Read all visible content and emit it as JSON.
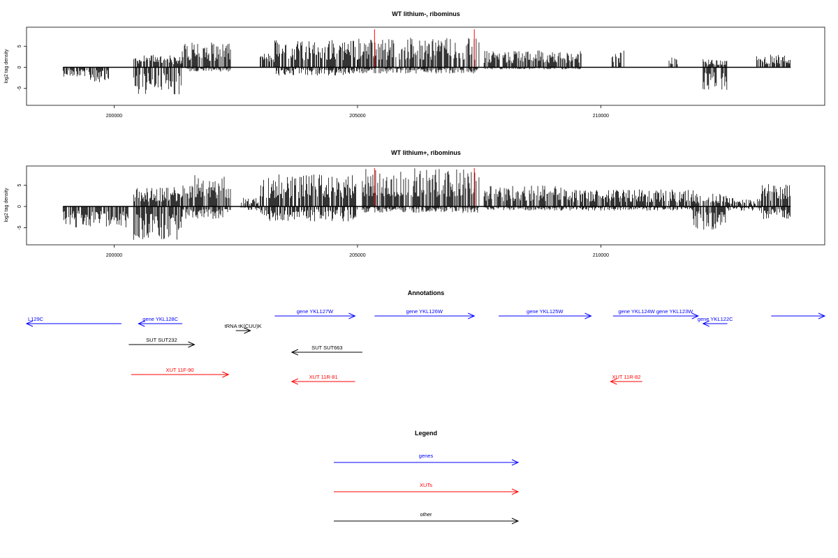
{
  "colors": {
    "signal": "#000000",
    "highlight": "#ff0000",
    "gene": "#0000ff",
    "xut": "#ff0000",
    "other": "#000000"
  },
  "chart_data": [
    {
      "type": "bar",
      "title": "WT lithium-, ribominus",
      "xlabel": "",
      "ylabel": "log2 tag density",
      "xlim": [
        198200,
        214600
      ],
      "ylim": [
        -9,
        9.5
      ],
      "xticks": [
        200000,
        205000,
        210000
      ],
      "xtick_labels": [
        "200000",
        "205000",
        "210000"
      ],
      "yticks": [
        -5,
        0,
        5
      ],
      "ytick_labels": [
        "-5",
        "0",
        "5"
      ],
      "baseline": {
        "x": [
          198950,
          213900
        ],
        "y": 0
      },
      "highlight_marks": [
        {
          "x": 205350,
          "y": 9.0
        },
        {
          "x": 207400,
          "y": 9.0
        }
      ],
      "density_segments": [
        {
          "x": [
            198950,
            199400
          ],
          "max": 0,
          "min": -2.2
        },
        {
          "x": [
            199400,
            199900
          ],
          "max": 0,
          "min": -3.5
        },
        {
          "x": [
            200400,
            201400
          ],
          "max": 3.0,
          "min": -6.5
        },
        {
          "x": [
            201400,
            202400
          ],
          "max": 6.0,
          "min": -1.0
        },
        {
          "x": [
            203000,
            203300
          ],
          "max": 3.5,
          "min": 0
        },
        {
          "x": [
            203300,
            205000
          ],
          "max": 6.8,
          "min": -2.0
        },
        {
          "x": [
            205000,
            207500
          ],
          "max": 7.0,
          "min": -1.5
        },
        {
          "x": [
            207600,
            209600
          ],
          "max": 4.0,
          "min": -0.5
        },
        {
          "x": [
            210200,
            210500
          ],
          "max": 4.0,
          "min": 0
        },
        {
          "x": [
            211400,
            211600
          ],
          "max": 2.5,
          "min": 0
        },
        {
          "x": [
            212100,
            212600
          ],
          "max": 2.0,
          "min": -5.5
        },
        {
          "x": [
            213200,
            213900
          ],
          "max": 3.0,
          "min": 0
        }
      ]
    },
    {
      "type": "bar",
      "title": "WT lithium+, ribominus",
      "xlabel": "",
      "ylabel": "log2 tag density",
      "xlim": [
        198200,
        214600
      ],
      "ylim": [
        -9,
        9.5
      ],
      "xticks": [
        200000,
        205000,
        210000
      ],
      "xtick_labels": [
        "200000",
        "205000",
        "210000"
      ],
      "yticks": [
        -5,
        0,
        5
      ],
      "ytick_labels": [
        "-5",
        "0",
        "5"
      ],
      "baseline": {
        "x": [
          198950,
          213900
        ],
        "y": 0
      },
      "highlight_marks": [
        {
          "x": 205350,
          "y": 9.0
        },
        {
          "x": 207400,
          "y": 9.0
        }
      ],
      "density_segments": [
        {
          "x": [
            198950,
            200300
          ],
          "max": 0,
          "min": -5.0
        },
        {
          "x": [
            200400,
            201400
          ],
          "max": 4.5,
          "min": -8.0
        },
        {
          "x": [
            201400,
            202400
          ],
          "max": 7.5,
          "min": -3.0
        },
        {
          "x": [
            202600,
            203000
          ],
          "max": 2.0,
          "min": -1.0
        },
        {
          "x": [
            203000,
            205000
          ],
          "max": 7.5,
          "min": -3.5
        },
        {
          "x": [
            205100,
            207500
          ],
          "max": 9.0,
          "min": -1.5
        },
        {
          "x": [
            207600,
            209400
          ],
          "max": 5.0,
          "min": -1.0
        },
        {
          "x": [
            209400,
            211900
          ],
          "max": 4.0,
          "min": -1.0
        },
        {
          "x": [
            211900,
            212600
          ],
          "max": 3.0,
          "min": -5.5
        },
        {
          "x": [
            212600,
            213300
          ],
          "max": 2.0,
          "min": -1.0
        },
        {
          "x": [
            213300,
            213900
          ],
          "max": 5.5,
          "min": -3.0
        }
      ]
    }
  ],
  "annotations": {
    "title": "Annotations",
    "items": [
      {
        "label": "L129C",
        "kind": "gene",
        "dir": "left",
        "x": [
          198200,
          200150
        ],
        "row": 1
      },
      {
        "label": "gene YKL128C",
        "kind": "gene",
        "dir": "left",
        "x": [
          200500,
          201400
        ],
        "row": 1
      },
      {
        "label": "gene YKL127W",
        "kind": "gene",
        "dir": "right",
        "x": [
          203300,
          204950
        ],
        "row": 0
      },
      {
        "label": "gene YKL126W",
        "kind": "gene",
        "dir": "right",
        "x": [
          205350,
          207400
        ],
        "row": 0
      },
      {
        "label": "gene YKL125W",
        "kind": "gene",
        "dir": "right",
        "x": [
          207900,
          209800
        ],
        "row": 0
      },
      {
        "label": "gene YKL124W gene YKL123W",
        "kind": "gene",
        "dir": "right",
        "x": [
          210250,
          212000
        ],
        "row": 0
      },
      {
        "label": "gene YKL122C",
        "kind": "gene",
        "dir": "left",
        "x": [
          212100,
          212600
        ],
        "row": 1
      },
      {
        "label": "",
        "kind": "gene",
        "dir": "right",
        "x": [
          213500,
          214600
        ],
        "row": 0
      },
      {
        "label": "tRNA tK(CUU)K",
        "kind": "other",
        "dir": "right",
        "x": [
          202500,
          202800
        ],
        "row": 2
      },
      {
        "label": "SUT SUT232",
        "kind": "other",
        "dir": "right",
        "x": [
          200300,
          201650
        ],
        "row": 3
      },
      {
        "label": "SUT SUT663",
        "kind": "other",
        "dir": "left",
        "x": [
          203650,
          205100
        ],
        "row": 4
      },
      {
        "label": "XUT 11F-90",
        "kind": "xut",
        "dir": "right",
        "x": [
          200350,
          202350
        ],
        "row": 5
      },
      {
        "label": "XUT 11R-81",
        "kind": "xut",
        "dir": "left",
        "x": [
          203650,
          204950
        ],
        "row": 6
      },
      {
        "label": "XUT 11R-82",
        "kind": "xut",
        "dir": "left",
        "x": [
          210200,
          210850
        ],
        "row": 6
      }
    ]
  },
  "legend": {
    "title": "Legend",
    "items": [
      {
        "label": "genes",
        "kind": "gene"
      },
      {
        "label": "XUTs",
        "kind": "xut"
      },
      {
        "label": "other",
        "kind": "other"
      }
    ]
  }
}
